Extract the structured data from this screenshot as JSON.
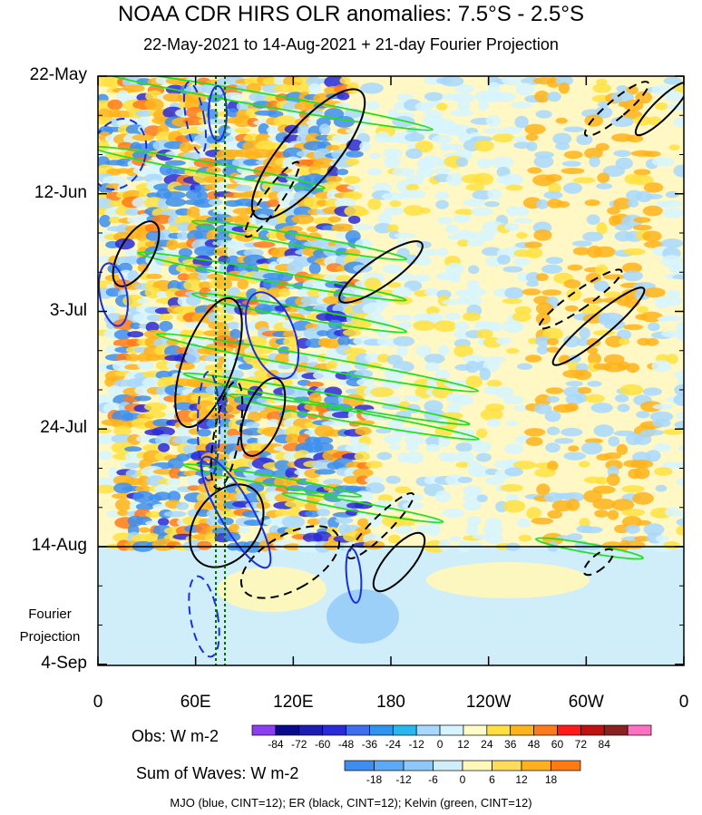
{
  "title": "NOAA CDR HIRS OLR anomalies: 7.5°S - 2.5°S",
  "subtitle": "22-May-2021 to 14-Aug-2021 + 21-day Fourier Projection",
  "projection_label_line1": "Fourier",
  "projection_label_line2": "Projection",
  "footer": "MJO (blue, CINT=12); ER (black, CINT=12); Kelvin (green, CINT=12)",
  "colors": {
    "mjo": "#1a2ee0",
    "er": "#000000",
    "kelvin": "#22e022",
    "projection_bg": "#cfeefa"
  },
  "chart_data": {
    "type": "heatmap",
    "x_axis": {
      "ticks": [
        "0",
        "60E",
        "120E",
        "180",
        "120W",
        "60W",
        "0"
      ],
      "range": [
        "0",
        "0"
      ]
    },
    "y_axis": {
      "ticks": [
        "22-May",
        "12-Jun",
        "3-Jul",
        "24-Jul",
        "14-Aug",
        "4-Sep"
      ],
      "range": [
        "22-May",
        "4-Sep"
      ]
    },
    "observation_end": "14-Aug",
    "colorbar_obs": {
      "title": "Obs: W m-2",
      "levels": [
        -84,
        -72,
        -60,
        -48,
        -36,
        -24,
        -12,
        0,
        12,
        24,
        36,
        48,
        60,
        72,
        84
      ],
      "labels": [
        "-84",
        "-72",
        "-60",
        "-48",
        "-36",
        "-24",
        "-12",
        "0",
        "12",
        "24",
        "36",
        "48",
        "60",
        "72",
        "84"
      ],
      "colors": [
        "#8b3ff0",
        "#0a0a8c",
        "#1d1db4",
        "#2a2ad8",
        "#3d6ef0",
        "#2f93f0",
        "#27b8f0",
        "#a8d8ff",
        "#d6f4ff",
        "#fffcc8",
        "#ffe040",
        "#ffb31a",
        "#ff7a1a",
        "#ff1a1a",
        "#c01010",
        "#8b2020",
        "#ff70c0"
      ]
    },
    "colorbar_waves": {
      "title": "Sum of Waves: W m-2",
      "levels": [
        -18,
        -12,
        -6,
        0,
        6,
        12,
        18
      ],
      "labels": [
        "-18",
        "-12",
        "-6",
        "0",
        "6",
        "12",
        "18"
      ],
      "colors": [
        "#3d8ef0",
        "#5aaaf5",
        "#8ec8f8",
        "#cfeefa",
        "#fff7b8",
        "#ffdb5a",
        "#ffb020",
        "#ff7a10"
      ]
    },
    "legend": [
      "MJO (blue, CINT=12)",
      "ER (black, CINT=12)",
      "Kelvin (green, CINT=12)"
    ]
  }
}
